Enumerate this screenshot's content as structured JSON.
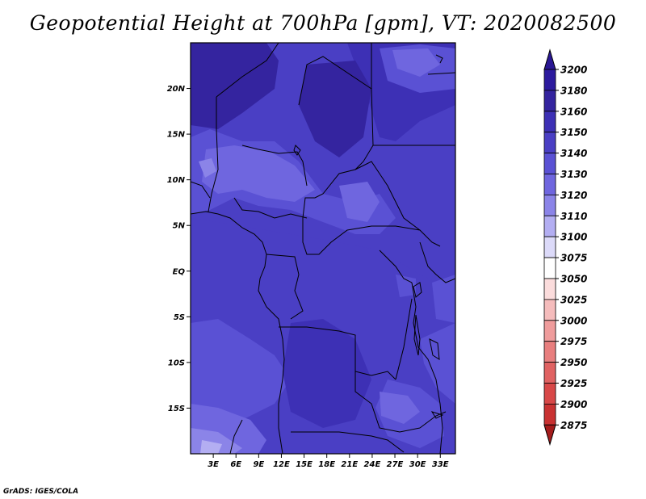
{
  "title": "Geopotential Height at 700hPa [gpm], VT: 2020082500",
  "credit": "GrADS: IGES/COLA",
  "map": {
    "lon_range": [
      0,
      35
    ],
    "lat_range": [
      -20,
      25
    ],
    "lon_ticks": [
      {
        "value": 3,
        "label": "3E"
      },
      {
        "value": 6,
        "label": "6E"
      },
      {
        "value": 9,
        "label": "9E"
      },
      {
        "value": 12,
        "label": "12E"
      },
      {
        "value": 15,
        "label": "15E"
      },
      {
        "value": 18,
        "label": "18E"
      },
      {
        "value": 21,
        "label": "21E"
      },
      {
        "value": 24,
        "label": "24E"
      },
      {
        "value": 27,
        "label": "27E"
      },
      {
        "value": 30,
        "label": "30E"
      },
      {
        "value": 33,
        "label": "33E"
      }
    ],
    "lat_ticks": [
      {
        "value": 20,
        "label": "20N"
      },
      {
        "value": 15,
        "label": "15N"
      },
      {
        "value": 10,
        "label": "10N"
      },
      {
        "value": 5,
        "label": "5N"
      },
      {
        "value": 0,
        "label": "EQ"
      },
      {
        "value": -5,
        "label": "5S"
      },
      {
        "value": -10,
        "label": "10S"
      },
      {
        "value": -15,
        "label": "15S"
      }
    ]
  },
  "colorbar": {
    "levels": [
      {
        "label": "3200",
        "color": "#2c1a9e"
      },
      {
        "label": "3180",
        "color": "#34249f"
      },
      {
        "label": "3160",
        "color": "#3d30b5"
      },
      {
        "label": "3150",
        "color": "#4a3fc4"
      },
      {
        "label": "3140",
        "color": "#5a51d4"
      },
      {
        "label": "3130",
        "color": "#6f66df"
      },
      {
        "label": "3120",
        "color": "#8b84e8"
      },
      {
        "label": "3110",
        "color": "#b3aef2"
      },
      {
        "label": "3100",
        "color": "#dcdaf9"
      },
      {
        "label": "3075",
        "color": "#ffffff"
      },
      {
        "label": "3050",
        "color": "#fbdcdc"
      },
      {
        "label": "3025",
        "color": "#f5bcbc"
      },
      {
        "label": "3000",
        "color": "#ef9c9c"
      },
      {
        "label": "2975",
        "color": "#e87e7e"
      },
      {
        "label": "2950",
        "color": "#e06262"
      },
      {
        "label": "2925",
        "color": "#d84848"
      },
      {
        "label": "2900",
        "color": "#c93232"
      },
      {
        "label": "2875",
        "color": "#b02222"
      }
    ],
    "top_cap_color": "#2a1794",
    "bottom_cap_color": "#a51c1c"
  }
}
